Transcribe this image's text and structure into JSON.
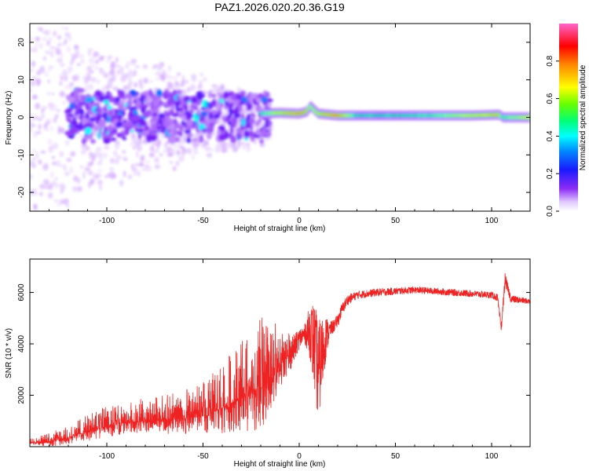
{
  "title": "PAZ1.2026.020.20.36.G19",
  "colors": {
    "snr_line": "#ee2222",
    "axis": "#000000",
    "background": "#ffffff"
  },
  "chart_data": [
    {
      "type": "heatmap",
      "name": "spectrogram",
      "title": "PAZ1.2026.020.20.36.G19",
      "xlabel": "Height of straight line (km)",
      "ylabel": "Frequency (Hz)",
      "xlim": [
        -140,
        120
      ],
      "ylim": [
        -25,
        25
      ],
      "xticks": [
        -100,
        -50,
        0,
        50,
        100
      ],
      "yticks": [
        -20,
        -10,
        0,
        10,
        20
      ],
      "colorbar": {
        "label": "Normalized spectral amplitude",
        "range": [
          0,
          1
        ],
        "ticks": [
          "0.0",
          "0.2",
          "0.4",
          "0.6",
          "0.8"
        ],
        "colormap": [
          "#ffffff",
          "#d8b4fe",
          "#7c1cf7",
          "#1a1aff",
          "#00ffff",
          "#00ff66",
          "#aaff00",
          "#ffff00",
          "#ff8800",
          "#ff0000",
          "#ff66cc"
        ]
      },
      "tone": {
        "x": [
          -20,
          -10,
          0,
          4,
          6,
          10,
          20,
          30,
          50,
          70,
          90,
          104,
          106,
          110,
          120
        ],
        "freq_hz": [
          1,
          1.2,
          1,
          1.5,
          3,
          1,
          0.5,
          0.5,
          0.5,
          0.5,
          0.5,
          0.7,
          0,
          0,
          0
        ],
        "amplitude": [
          0.5,
          0.7,
          0.8,
          0.75,
          0.6,
          0.7,
          0.85,
          0.5,
          0.5,
          0.55,
          0.7,
          0.75,
          0.5,
          0.6,
          0.7
        ]
      }
    },
    {
      "type": "line",
      "name": "snr",
      "xlabel": "Height of straight line (km)",
      "ylabel": "SNR (10 * v/v)",
      "xlim": [
        -140,
        120
      ],
      "ylim": [
        0,
        7300
      ],
      "xticks": [
        -100,
        -50,
        0,
        50,
        100
      ],
      "yticks": [
        2000,
        4000,
        6000
      ],
      "series": [
        {
          "name": "SNR",
          "x": [
            -140,
            -130,
            -120,
            -110,
            -100,
            -90,
            -80,
            -70,
            -60,
            -50,
            -40,
            -30,
            -25,
            -20,
            -15,
            -10,
            -5,
            -2,
            0,
            3,
            6,
            8,
            10,
            12,
            14,
            16,
            18,
            20,
            22,
            25,
            30,
            40,
            50,
            60,
            70,
            80,
            90,
            100,
            103,
            105,
            107,
            110,
            115,
            120
          ],
          "values": [
            150,
            200,
            350,
            600,
            800,
            950,
            1000,
            1050,
            1100,
            1200,
            1500,
            1900,
            2100,
            2300,
            2600,
            3200,
            3600,
            3900,
            4200,
            4400,
            4500,
            3800,
            2900,
            3600,
            4300,
            4550,
            4700,
            4900,
            5300,
            5700,
            5900,
            6000,
            6050,
            6100,
            6050,
            6000,
            5950,
            5900,
            5800,
            4600,
            6500,
            5750,
            5700,
            5650
          ],
          "noise": [
            100,
            200,
            300,
            400,
            500,
            500,
            550,
            600,
            700,
            800,
            1100,
            1400,
            1700,
            1800,
            1500,
            1000,
            700,
            500,
            400,
            400,
            1200,
            1800,
            2000,
            1500,
            800,
            300,
            250,
            250,
            250,
            200,
            150,
            150,
            140,
            130,
            130,
            130,
            130,
            130,
            150,
            200,
            250,
            150,
            120,
            100
          ]
        }
      ]
    }
  ]
}
